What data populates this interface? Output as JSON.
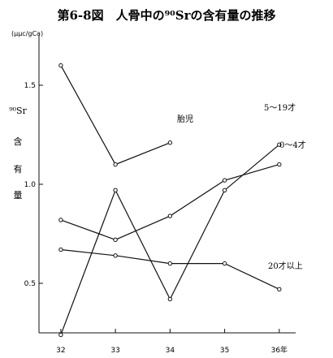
{
  "chart_data": {
    "type": "line",
    "title": "第6-8図　人骨中の⁹⁰Srの含有量の推移",
    "ylabel_lines": [
      "⁹⁰Sr",
      "含",
      "有",
      "量"
    ],
    "y_unit": "(μμc/gCa)",
    "xlabel": "",
    "x_ticks": [
      "32",
      "33",
      "34",
      "35",
      "36年"
    ],
    "x": [
      32,
      33,
      34,
      35,
      36
    ],
    "xlim": [
      31.6,
      36.3
    ],
    "y_ticks": [
      "1.5",
      "1.0",
      "0.5"
    ],
    "y_tick_values": [
      1.5,
      1.0,
      0.5
    ],
    "ylim": [
      0.25,
      1.75
    ],
    "grid": false,
    "series": [
      {
        "name": "胎児",
        "x": [
          32,
          33,
          34
        ],
        "values": [
          1.6,
          1.1,
          1.21
        ]
      },
      {
        "name": "5～19才",
        "x": [
          32,
          33,
          34,
          35,
          36
        ],
        "values": [
          0.24,
          0.97,
          0.42,
          0.97,
          1.2
        ]
      },
      {
        "name": "0～4才",
        "x": [
          32,
          33,
          34,
          35,
          36
        ],
        "values": [
          0.82,
          0.72,
          0.84,
          1.02,
          1.1
        ]
      },
      {
        "name": "20才以上",
        "x": [
          32,
          33,
          34,
          35,
          36
        ],
        "values": [
          0.67,
          0.64,
          0.6,
          0.6,
          0.47
        ]
      }
    ]
  }
}
